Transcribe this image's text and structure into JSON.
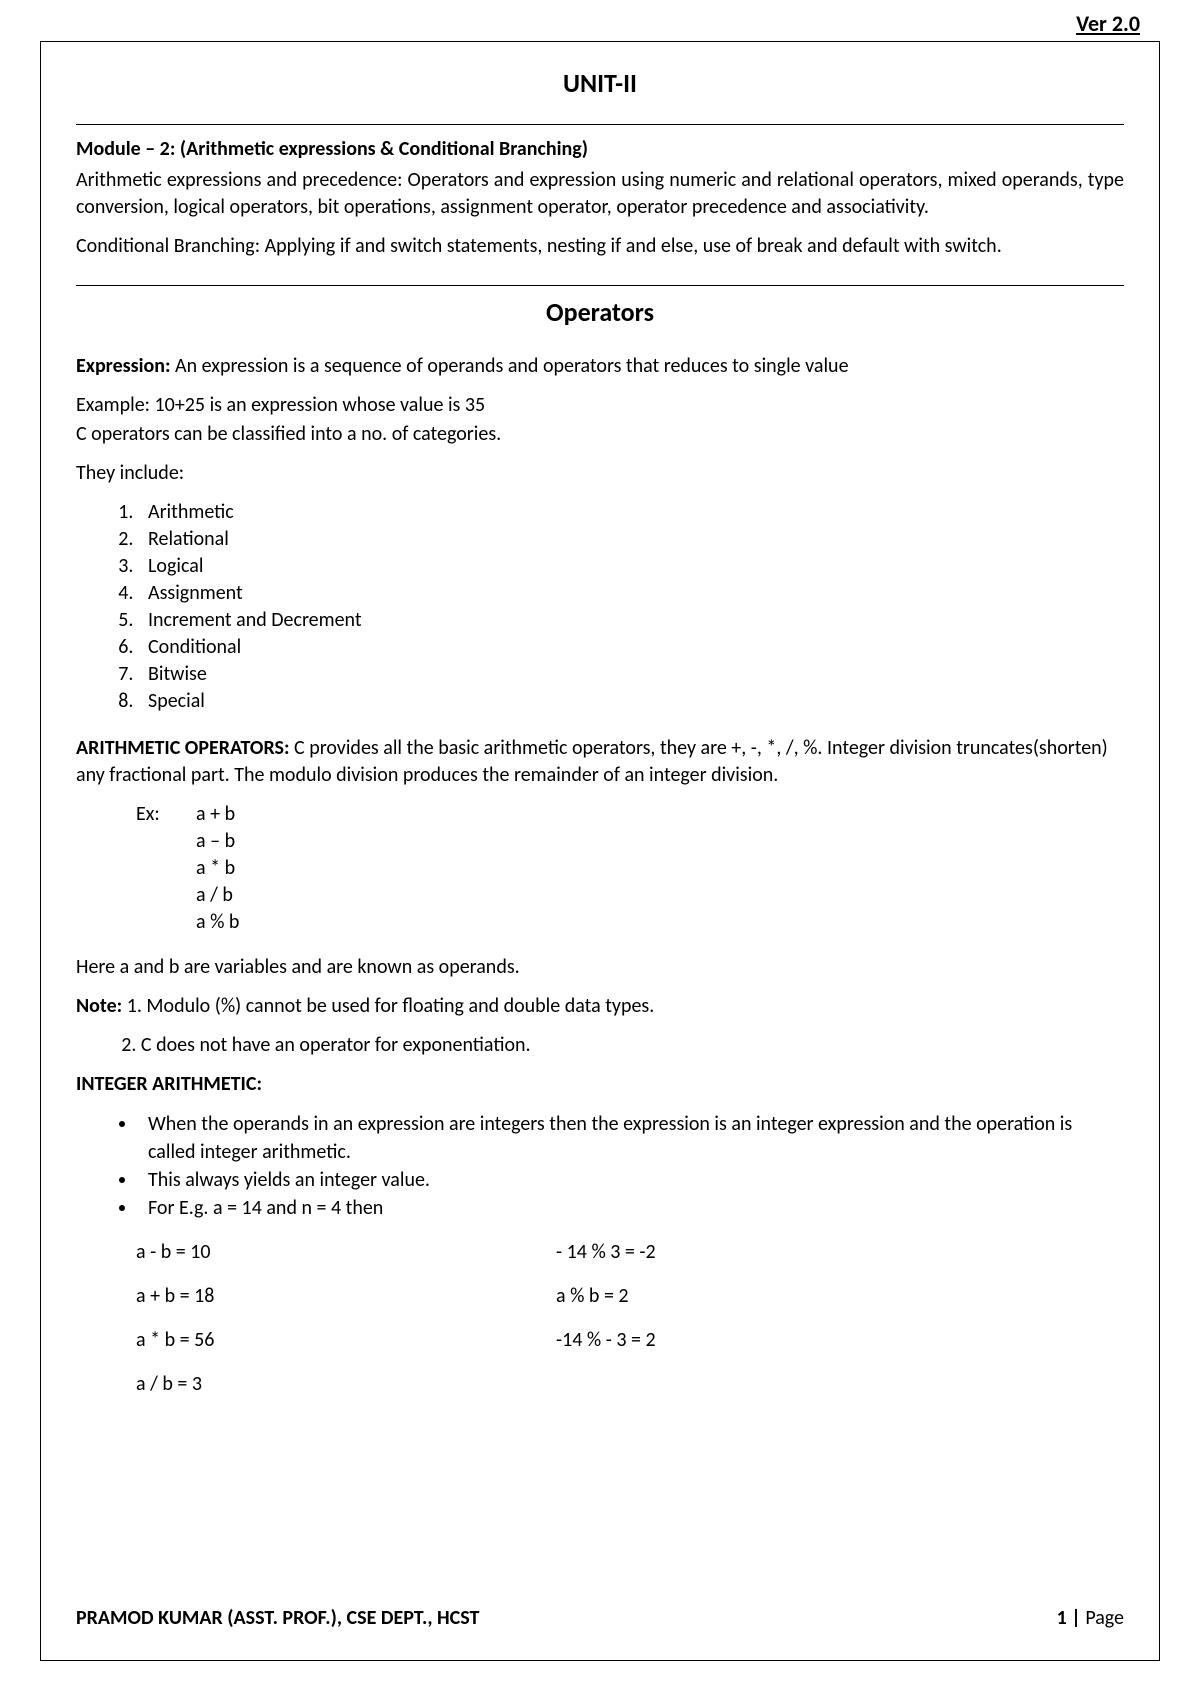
{
  "version": "Ver 2.0",
  "unit_title": "UNIT-II",
  "module_title": "Module – 2: (Arithmetic expressions & Conditional Branching)",
  "intro_para1": "Arithmetic expressions and precedence: Operators and expression using numeric and relational operators, mixed operands, type conversion, logical operators, bit operations, assignment operator, operator precedence and associativity.",
  "intro_para2": "Conditional Branching: Applying if and switch statements, nesting if and else, use of break and default with switch.",
  "operators_heading": "Operators",
  "expression_label": "Expression:",
  "expression_text": " An expression is a sequence of operands and operators that reduces to single value",
  "example_line1": "Example: 10+25 is an expression whose value is 35",
  "example_line2": "C operators can be classified into a no. of categories.",
  "they_include": "They include:",
  "categories": [
    "Arithmetic",
    "Relational",
    "Logical",
    "Assignment",
    "Increment and Decrement",
    "Conditional",
    "Bitwise",
    "Special"
  ],
  "arith_label": "ARITHMETIC OPERATORS:",
  "arith_text": " C provides all the basic arithmetic operators, they are +, -, *, /, %. Integer division truncates(shorten) any fractional part. The modulo division produces the remainder of an integer division.",
  "ex_label": "Ex:",
  "ex_lines": [
    "a + b",
    "a – b",
    "a  *  b",
    "a  /  b",
    "a % b"
  ],
  "operands_line": "Here a and b are variables and are known as operands.",
  "note_label": "Note:",
  "note1": " 1. Modulo (%) cannot be used for floating and double data types.",
  "note2_indent": "          2. C does not have an operator for exponentiation.",
  "int_arith_heading": "INTEGER ARITHMETIC:",
  "int_bullets": [
    "When the operands in an expression are integers then the expression is an integer expression and the operation is called integer arithmetic.",
    "This always yields an integer value.",
    "For E.g. a = 14 and n = 4 then"
  ],
  "calc_rows": [
    {
      "l": "a - b = 10",
      "r": "- 14 % 3 = -2"
    },
    {
      "l": "a + b = 18",
      "r": "a % b = 2"
    },
    {
      "l": "a * b = 56",
      "r": "-14 % - 3 = 2"
    },
    {
      "l": "a / b = 3",
      "r": ""
    }
  ],
  "footer_left": "PRAMOD KUMAR (ASST. PROF.), CSE DEPT., HCST",
  "footer_right_num": "1",
  "footer_right_sep": " | ",
  "footer_right_word": "Page"
}
